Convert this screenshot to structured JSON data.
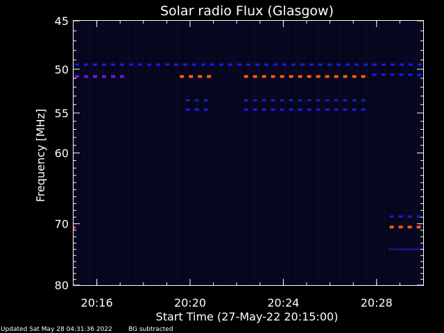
{
  "chart_data": {
    "type": "heatmap",
    "title": "Solar radio Flux (Glasgow)",
    "xlabel": "Start Time (27-May-22 20:15:00)",
    "ylabel": "Frequency [MHz]",
    "xlim": [
      "20:15:00",
      "20:30:00"
    ],
    "ylim": [
      45,
      80
    ],
    "y_scale": "log",
    "y_direction": "increasing-downward",
    "xticks": [
      "20:16",
      "20:20",
      "20:24",
      "20:28"
    ],
    "yticks": [
      45,
      50,
      55,
      60,
      70,
      80
    ],
    "colors": {
      "background": "#000000",
      "faint": "#0b0b2a",
      "blue": "#1a1aff",
      "purple": "#6a1ad8",
      "orange": "#ff5a10",
      "red": "#ff2040"
    },
    "features": [
      {
        "freq_mhz": 49.5,
        "start": "20:15:00",
        "end": "20:30:00",
        "intensity": "blue",
        "pattern": "dashed"
      },
      {
        "freq_mhz": 50.8,
        "start": "20:15:00",
        "end": "20:17:15",
        "intensity": "purple",
        "pattern": "dashed"
      },
      {
        "freq_mhz": 50.8,
        "start": "20:19:30",
        "end": "20:21:00",
        "intensity": "orange",
        "pattern": "dashed"
      },
      {
        "freq_mhz": 50.8,
        "start": "20:22:15",
        "end": "20:27:45",
        "intensity": "orange",
        "pattern": "dashed"
      },
      {
        "freq_mhz": 50.6,
        "start": "20:27:45",
        "end": "20:30:00",
        "intensity": "blue",
        "pattern": "dashed"
      },
      {
        "freq_mhz": 53.5,
        "start": "20:19:45",
        "end": "20:21:00",
        "intensity": "faint-blue",
        "pattern": "dashed"
      },
      {
        "freq_mhz": 53.5,
        "start": "20:22:15",
        "end": "20:27:45",
        "intensity": "faint-blue",
        "pattern": "dashed"
      },
      {
        "freq_mhz": 54.6,
        "start": "20:19:45",
        "end": "20:21:00",
        "intensity": "blue",
        "pattern": "dashed"
      },
      {
        "freq_mhz": 54.6,
        "start": "20:22:15",
        "end": "20:27:45",
        "intensity": "blue",
        "pattern": "dashed"
      },
      {
        "freq_mhz": 68.9,
        "start": "20:28:30",
        "end": "20:30:00",
        "intensity": "blue",
        "pattern": "dashed"
      },
      {
        "freq_mhz": 70.5,
        "start": "20:28:30",
        "end": "20:30:00",
        "intensity": "orange",
        "pattern": "dashed"
      },
      {
        "freq_mhz": 70.6,
        "start": "20:15:00",
        "end": "20:15:05",
        "intensity": "red",
        "pattern": "solid"
      },
      {
        "freq_mhz": 74.0,
        "start": "20:28:30",
        "end": "20:30:00",
        "intensity": "faint-blue",
        "pattern": "solid"
      }
    ]
  },
  "footer": {
    "updated": "Updated Sat May 28 04:31:36 2022",
    "note": "BG subtracted"
  }
}
